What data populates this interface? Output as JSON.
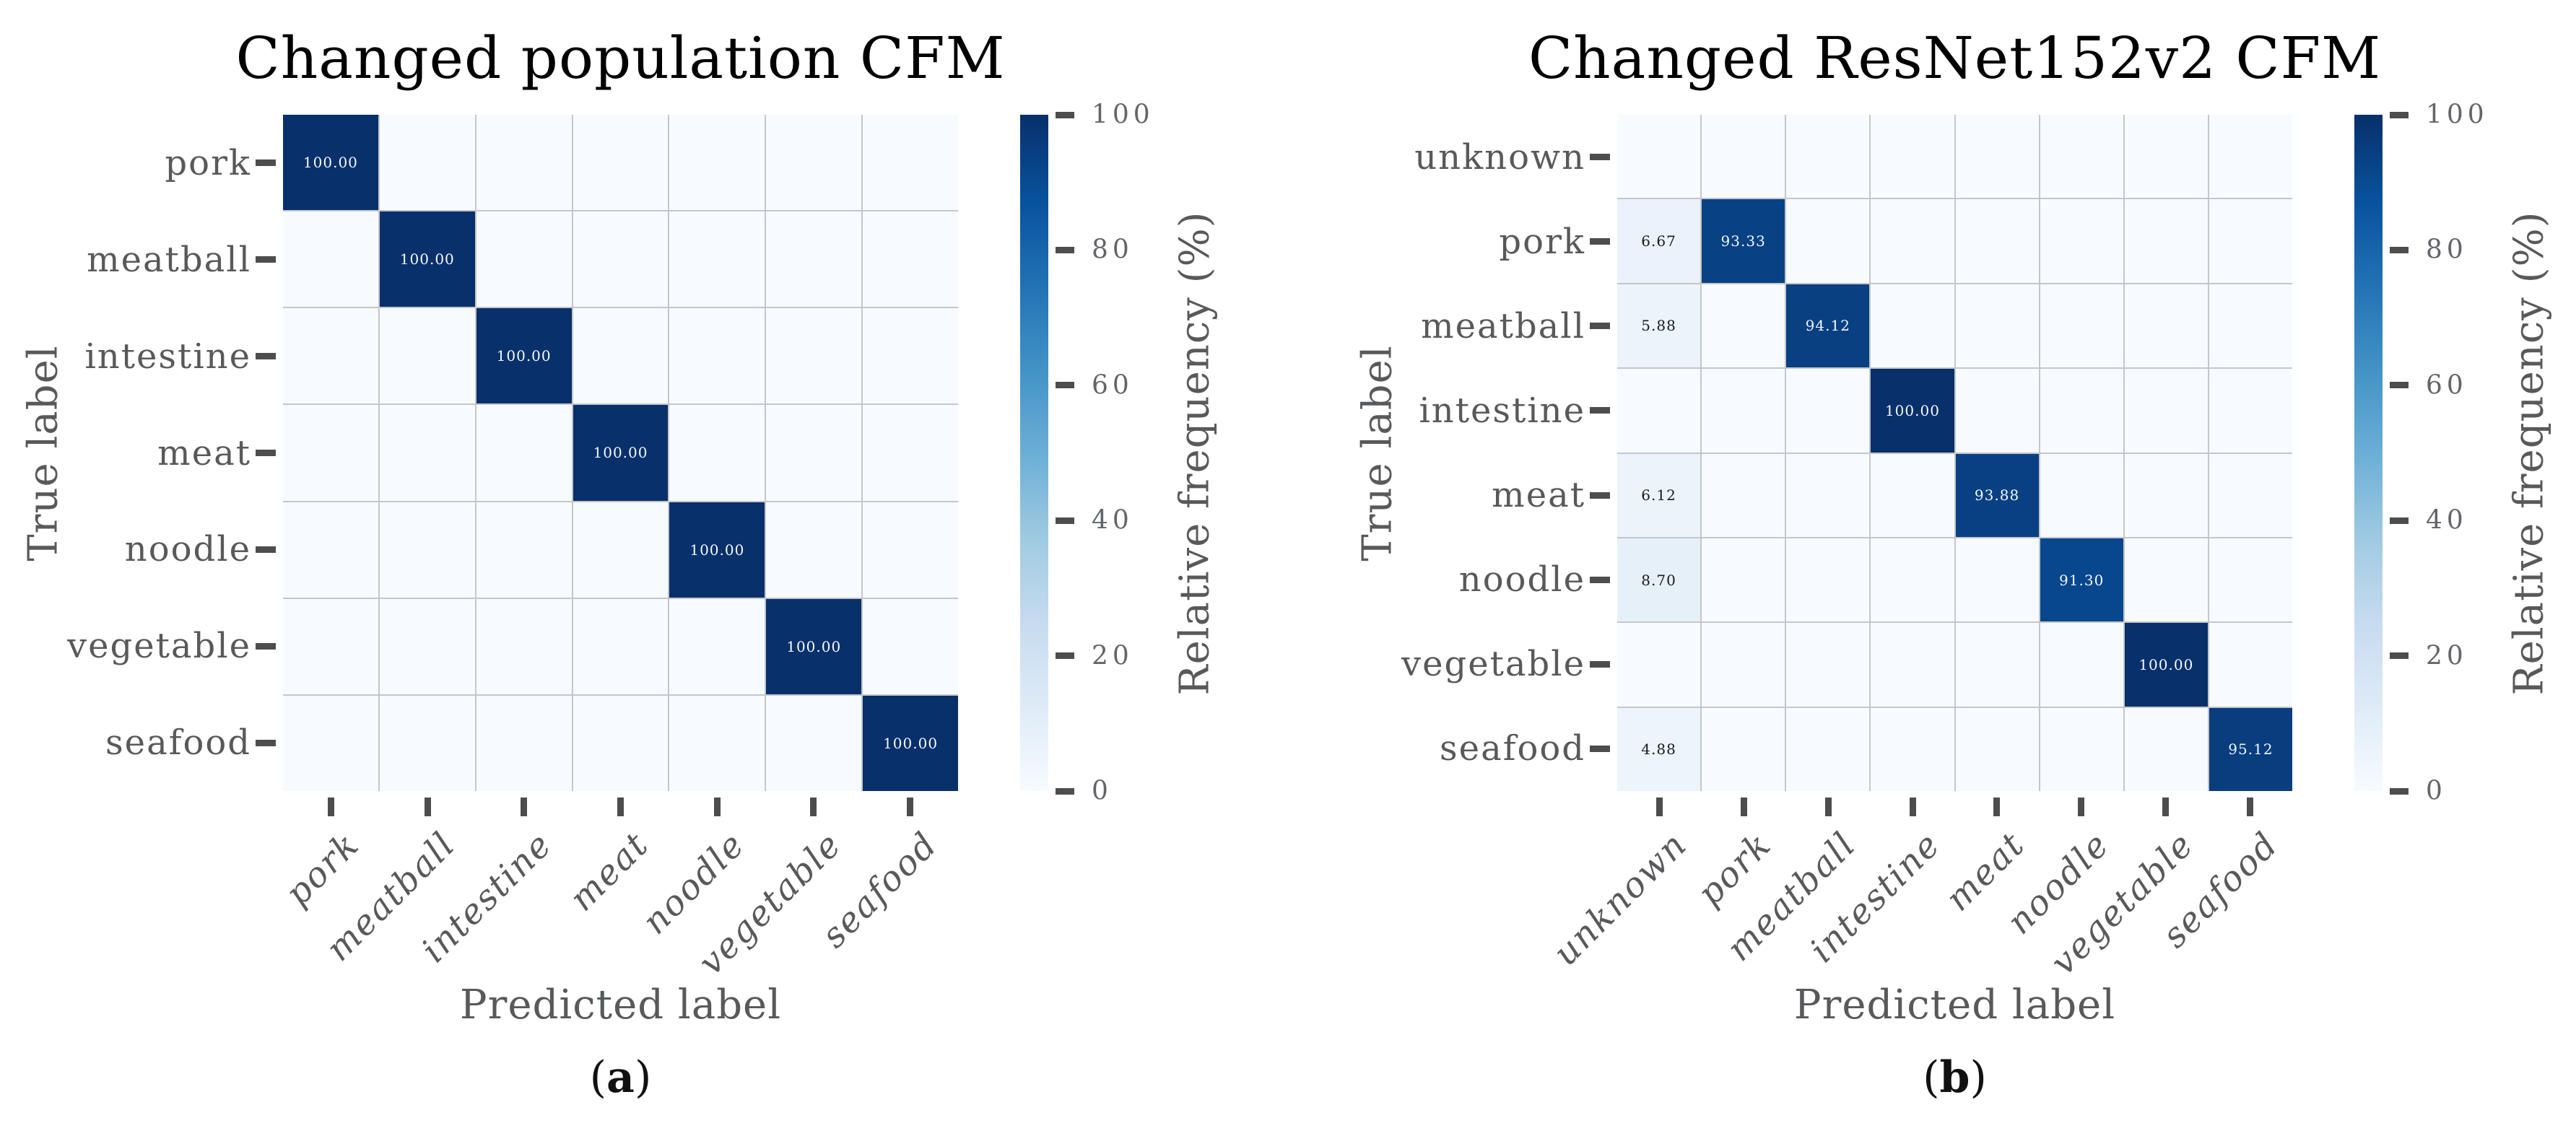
{
  "colors": {
    "background": "#ffffff",
    "colormap_min": "#f7fbff",
    "colormap_max": "#08306b",
    "grid_line": "#c4c6ca",
    "tick_mark": "#4d4d4d",
    "gray_text": "#58595b",
    "title_text": "#000000",
    "annotation_on_dark": "#f5f8fc",
    "annotation_on_light": "#1a1a1a"
  },
  "chart_data": [
    {
      "type": "heatmap",
      "title": "Changed population CFM",
      "xlabel": "Predicted label",
      "ylabel": "True label",
      "caption_open": "(",
      "caption_letter": "a",
      "caption_close": ")",
      "colormap": "Blues",
      "vmin": 0,
      "vmax": 100,
      "value_format": ".2f",
      "hide_zero": true,
      "colorbar_label": "Relative frequency (%)",
      "colorbar_ticks": [
        0,
        20,
        40,
        60,
        80,
        100
      ],
      "x_categories": [
        "pork",
        "meatball",
        "intestine",
        "meat",
        "noodle",
        "vegetable",
        "seafood"
      ],
      "y_categories": [
        "pork",
        "meatball",
        "intestine",
        "meat",
        "noodle",
        "vegetable",
        "seafood"
      ],
      "values": [
        [
          100,
          0,
          0,
          0,
          0,
          0,
          0
        ],
        [
          0,
          100,
          0,
          0,
          0,
          0,
          0
        ],
        [
          0,
          0,
          100,
          0,
          0,
          0,
          0
        ],
        [
          0,
          0,
          0,
          100,
          0,
          0,
          0
        ],
        [
          0,
          0,
          0,
          0,
          100,
          0,
          0
        ],
        [
          0,
          0,
          0,
          0,
          0,
          100,
          0
        ],
        [
          0,
          0,
          0,
          0,
          0,
          0,
          100
        ]
      ]
    },
    {
      "type": "heatmap",
      "title": "Changed ResNet152v2 CFM",
      "xlabel": "Predicted label",
      "ylabel": "True label",
      "caption_open": "(",
      "caption_letter": "b",
      "caption_close": ")",
      "colormap": "Blues",
      "vmin": 0,
      "vmax": 100,
      "value_format": ".2f",
      "hide_zero": true,
      "colorbar_label": "Relative frequency (%)",
      "colorbar_ticks": [
        0,
        20,
        40,
        60,
        80,
        100
      ],
      "x_categories": [
        "unknown",
        "pork",
        "meatball",
        "intestine",
        "meat",
        "noodle",
        "vegetable",
        "seafood"
      ],
      "y_categories": [
        "unknown",
        "pork",
        "meatball",
        "intestine",
        "meat",
        "noodle",
        "vegetable",
        "seafood"
      ],
      "values": [
        [
          0,
          0,
          0,
          0,
          0,
          0,
          0,
          0
        ],
        [
          6.67,
          93.33,
          0,
          0,
          0,
          0,
          0,
          0
        ],
        [
          5.88,
          0,
          94.12,
          0,
          0,
          0,
          0,
          0
        ],
        [
          0,
          0,
          0,
          100,
          0,
          0,
          0,
          0
        ],
        [
          6.12,
          0,
          0,
          0,
          93.88,
          0,
          0,
          0
        ],
        [
          8.7,
          0,
          0,
          0,
          0,
          91.3,
          0,
          0
        ],
        [
          0,
          0,
          0,
          0,
          0,
          0,
          100,
          0
        ],
        [
          4.88,
          0,
          0,
          0,
          0,
          0,
          0,
          95.12
        ]
      ]
    }
  ]
}
